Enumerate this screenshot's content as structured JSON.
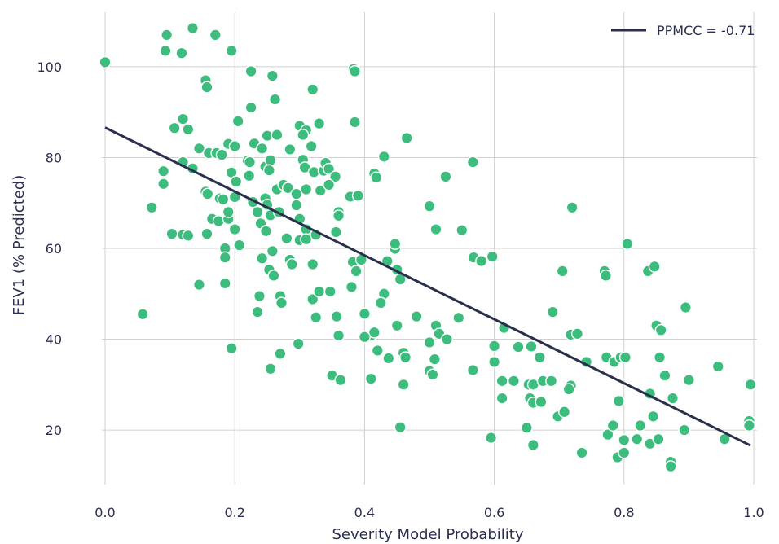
{
  "chart_data": {
    "type": "scatter",
    "xlabel": "Severity Model Probability",
    "ylabel": "FEV1 (% Predicted)",
    "xlim": [
      0.0,
      1.0
    ],
    "ylim": [
      8,
      112
    ],
    "xticks": [
      0.0,
      0.2,
      0.4,
      0.6,
      0.8,
      1.0
    ],
    "xtick_labels": [
      "0.0",
      "0.2",
      "0.4",
      "0.6",
      "0.8",
      "1.0"
    ],
    "yticks": [
      20,
      40,
      60,
      80,
      100
    ],
    "ytick_labels": [
      "20",
      "40",
      "60",
      "80",
      "100"
    ],
    "grid": true,
    "legend": {
      "position": "top-right",
      "entries": [
        "PPMCC = -0.71"
      ]
    },
    "colors": {
      "points": "#3dbd7d",
      "line": "#2b2f4e",
      "text": "#2b2f4e",
      "grid": "#d0d0d0"
    },
    "regression": {
      "name": "PPMCC = -0.71",
      "x": [
        0.0,
        0.995
      ],
      "y": [
        86.6,
        16.6
      ]
    },
    "points": [
      [
        0.0,
        101
      ],
      [
        0.095,
        107
      ],
      [
        0.093,
        103.5
      ],
      [
        0.118,
        103
      ],
      [
        0.135,
        108.5
      ],
      [
        0.17,
        107
      ],
      [
        0.195,
        103.5
      ],
      [
        0.155,
        97
      ],
      [
        0.157,
        95.5
      ],
      [
        0.225,
        99
      ],
      [
        0.258,
        98
      ],
      [
        0.32,
        95
      ],
      [
        0.383,
        99.5
      ],
      [
        0.385,
        99
      ],
      [
        0.225,
        91
      ],
      [
        0.262,
        92.8
      ],
      [
        0.12,
        88.5
      ],
      [
        0.107,
        86.5
      ],
      [
        0.128,
        86.2
      ],
      [
        0.205,
        88
      ],
      [
        0.3,
        87
      ],
      [
        0.31,
        86
      ],
      [
        0.33,
        87.5
      ],
      [
        0.305,
        85
      ],
      [
        0.385,
        87.8
      ],
      [
        0.465,
        84.3
      ],
      [
        0.25,
        84.8
      ],
      [
        0.265,
        85
      ],
      [
        0.145,
        82
      ],
      [
        0.16,
        81
      ],
      [
        0.172,
        81
      ],
      [
        0.18,
        80.6
      ],
      [
        0.19,
        83
      ],
      [
        0.2,
        82.5
      ],
      [
        0.23,
        83.1
      ],
      [
        0.242,
        82
      ],
      [
        0.318,
        82.5
      ],
      [
        0.285,
        81.8
      ],
      [
        0.12,
        79
      ],
      [
        0.135,
        77.6
      ],
      [
        0.22,
        79.3
      ],
      [
        0.223,
        79
      ],
      [
        0.247,
        78
      ],
      [
        0.255,
        79.4
      ],
      [
        0.222,
        76
      ],
      [
        0.253,
        77.2
      ],
      [
        0.305,
        79.5
      ],
      [
        0.308,
        77.8
      ],
      [
        0.322,
        76.8
      ],
      [
        0.337,
        77.1
      ],
      [
        0.34,
        78.8
      ],
      [
        0.345,
        77.5
      ],
      [
        0.355,
        75.8
      ],
      [
        0.09,
        77
      ],
      [
        0.09,
        74.2
      ],
      [
        0.195,
        76.7
      ],
      [
        0.202,
        74.7
      ],
      [
        0.415,
        76.5
      ],
      [
        0.43,
        80.2
      ],
      [
        0.418,
        75.6
      ],
      [
        0.525,
        75.8
      ],
      [
        0.567,
        79
      ],
      [
        0.155,
        72.5
      ],
      [
        0.158,
        72
      ],
      [
        0.177,
        71
      ],
      [
        0.182,
        70.8
      ],
      [
        0.2,
        71.3
      ],
      [
        0.228,
        70.2
      ],
      [
        0.247,
        71
      ],
      [
        0.265,
        73
      ],
      [
        0.275,
        74
      ],
      [
        0.282,
        73.3
      ],
      [
        0.295,
        72
      ],
      [
        0.31,
        73
      ],
      [
        0.332,
        72.7
      ],
      [
        0.345,
        74
      ],
      [
        0.378,
        71.4
      ],
      [
        0.39,
        71.6
      ],
      [
        0.072,
        69
      ],
      [
        0.165,
        66.5
      ],
      [
        0.175,
        66
      ],
      [
        0.19,
        66.5
      ],
      [
        0.19,
        68
      ],
      [
        0.235,
        68
      ],
      [
        0.24,
        65.5
      ],
      [
        0.25,
        69.6
      ],
      [
        0.255,
        67.3
      ],
      [
        0.268,
        68
      ],
      [
        0.295,
        69.5
      ],
      [
        0.3,
        66.5
      ],
      [
        0.31,
        64.2
      ],
      [
        0.36,
        68
      ],
      [
        0.36,
        67.2
      ],
      [
        0.5,
        69.3
      ],
      [
        0.72,
        69
      ],
      [
        0.103,
        63.2
      ],
      [
        0.12,
        63
      ],
      [
        0.128,
        62.8
      ],
      [
        0.157,
        63.2
      ],
      [
        0.2,
        64.2
      ],
      [
        0.248,
        63.8
      ],
      [
        0.28,
        62.2
      ],
      [
        0.3,
        61.8
      ],
      [
        0.31,
        62
      ],
      [
        0.325,
        63
      ],
      [
        0.356,
        63.6
      ],
      [
        0.207,
        60.7
      ],
      [
        0.185,
        60
      ],
      [
        0.185,
        58
      ],
      [
        0.242,
        57.8
      ],
      [
        0.258,
        59.4
      ],
      [
        0.285,
        57.5
      ],
      [
        0.32,
        56.5
      ],
      [
        0.382,
        57
      ],
      [
        0.395,
        57.5
      ],
      [
        0.447,
        59.9
      ],
      [
        0.447,
        61
      ],
      [
        0.435,
        57.2
      ],
      [
        0.51,
        64.2
      ],
      [
        0.55,
        64
      ],
      [
        0.568,
        58
      ],
      [
        0.58,
        57.2
      ],
      [
        0.597,
        58.2
      ],
      [
        0.253,
        55.3
      ],
      [
        0.26,
        54
      ],
      [
        0.288,
        56.5
      ],
      [
        0.387,
        55
      ],
      [
        0.45,
        55.3
      ],
      [
        0.455,
        53.2
      ],
      [
        0.705,
        55
      ],
      [
        0.77,
        55
      ],
      [
        0.772,
        54
      ],
      [
        0.837,
        55
      ],
      [
        0.847,
        56
      ],
      [
        0.805,
        61
      ],
      [
        0.145,
        52
      ],
      [
        0.185,
        52.3
      ],
      [
        0.238,
        49.5
      ],
      [
        0.27,
        49.5
      ],
      [
        0.272,
        48
      ],
      [
        0.32,
        48.8
      ],
      [
        0.33,
        50.5
      ],
      [
        0.347,
        50.5
      ],
      [
        0.38,
        51.5
      ],
      [
        0.43,
        50
      ],
      [
        0.425,
        48
      ],
      [
        0.058,
        45.5
      ],
      [
        0.235,
        46
      ],
      [
        0.325,
        44.8
      ],
      [
        0.357,
        45
      ],
      [
        0.4,
        45.6
      ],
      [
        0.48,
        45
      ],
      [
        0.545,
        44.7
      ],
      [
        0.69,
        46
      ],
      [
        0.895,
        47
      ],
      [
        0.41,
        40.8
      ],
      [
        0.415,
        41.5
      ],
      [
        0.45,
        43
      ],
      [
        0.51,
        43
      ],
      [
        0.515,
        41.2
      ],
      [
        0.527,
        40
      ],
      [
        0.36,
        40.8
      ],
      [
        0.195,
        38
      ],
      [
        0.27,
        36.8
      ],
      [
        0.298,
        39
      ],
      [
        0.4,
        40.5
      ],
      [
        0.42,
        37.5
      ],
      [
        0.437,
        35.8
      ],
      [
        0.46,
        37
      ],
      [
        0.463,
        36
      ],
      [
        0.5,
        39.3
      ],
      [
        0.508,
        35.6
      ],
      [
        0.6,
        38.5
      ],
      [
        0.6,
        35
      ],
      [
        0.615,
        42.5
      ],
      [
        0.637,
        38.3
      ],
      [
        0.657,
        38.4
      ],
      [
        0.67,
        36
      ],
      [
        0.718,
        41
      ],
      [
        0.728,
        41.2
      ],
      [
        0.742,
        35
      ],
      [
        0.773,
        36
      ],
      [
        0.785,
        35
      ],
      [
        0.795,
        36
      ],
      [
        0.802,
        36
      ],
      [
        0.85,
        43
      ],
      [
        0.857,
        42
      ],
      [
        0.855,
        36
      ],
      [
        0.255,
        33.5
      ],
      [
        0.35,
        32
      ],
      [
        0.363,
        31
      ],
      [
        0.41,
        31.3
      ],
      [
        0.46,
        30
      ],
      [
        0.5,
        33
      ],
      [
        0.505,
        32.2
      ],
      [
        0.567,
        33.2
      ],
      [
        0.612,
        30.8
      ],
      [
        0.63,
        30.8
      ],
      [
        0.653,
        30
      ],
      [
        0.66,
        30
      ],
      [
        0.675,
        30.8
      ],
      [
        0.688,
        30.8
      ],
      [
        0.718,
        29.8
      ],
      [
        0.715,
        29
      ],
      [
        0.863,
        32
      ],
      [
        0.9,
        31
      ],
      [
        0.945,
        34
      ],
      [
        0.995,
        30
      ],
      [
        0.612,
        27
      ],
      [
        0.655,
        27
      ],
      [
        0.66,
        26
      ],
      [
        0.672,
        26.2
      ],
      [
        0.792,
        26.4
      ],
      [
        0.84,
        28
      ],
      [
        0.875,
        27
      ],
      [
        0.455,
        20.6
      ],
      [
        0.595,
        18.3
      ],
      [
        0.65,
        20.5
      ],
      [
        0.66,
        16.7
      ],
      [
        0.698,
        23
      ],
      [
        0.708,
        24
      ],
      [
        0.735,
        15
      ],
      [
        0.775,
        19
      ],
      [
        0.783,
        21
      ],
      [
        0.79,
        14
      ],
      [
        0.8,
        15
      ],
      [
        0.8,
        17.8
      ],
      [
        0.82,
        18
      ],
      [
        0.825,
        21
      ],
      [
        0.84,
        17
      ],
      [
        0.845,
        23
      ],
      [
        0.853,
        18
      ],
      [
        0.872,
        13
      ],
      [
        0.872,
        12
      ],
      [
        0.893,
        20
      ],
      [
        0.955,
        18
      ],
      [
        0.993,
        22
      ],
      [
        0.993,
        21
      ]
    ]
  }
}
